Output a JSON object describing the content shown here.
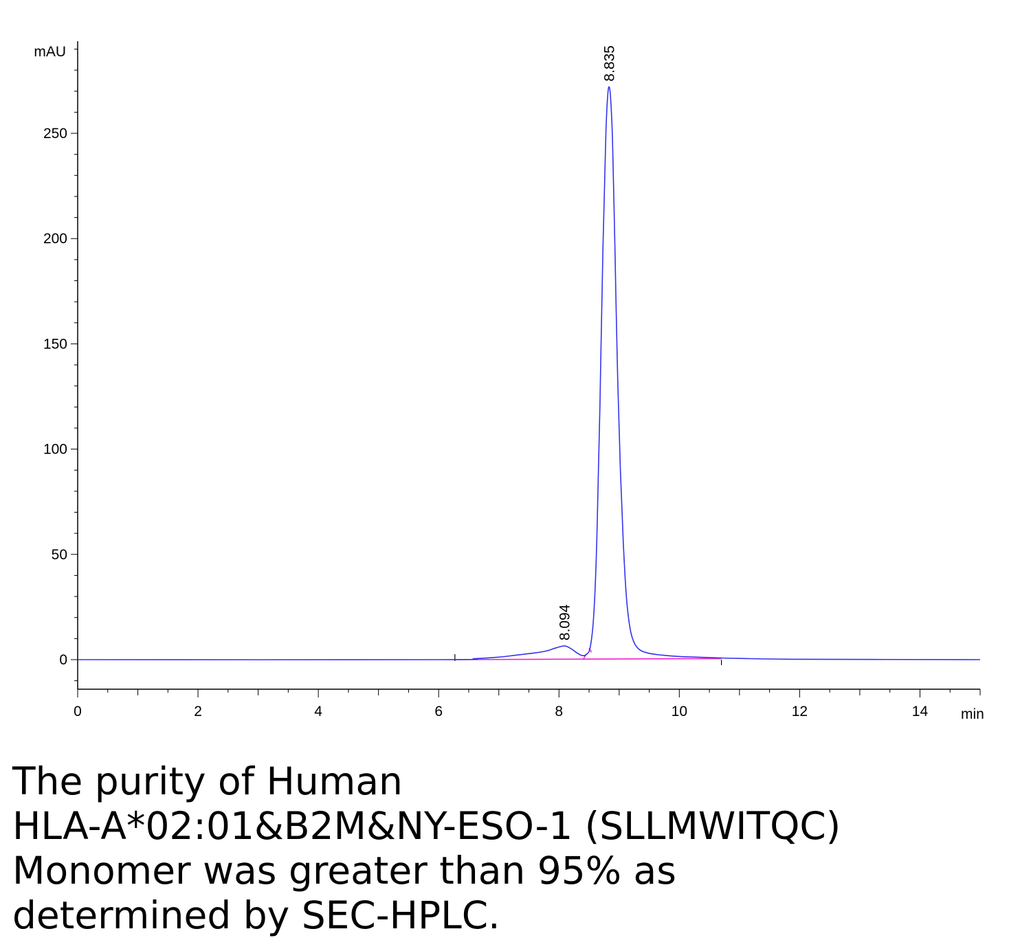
{
  "chart_data": {
    "type": "line",
    "ylabel": "mAU",
    "xlabel": "min",
    "xlim": [
      0,
      15
    ],
    "ylim": [
      -14,
      295
    ],
    "xticks": [
      0,
      2,
      4,
      6,
      8,
      10,
      12,
      14
    ],
    "yticks": [
      0,
      50,
      100,
      150,
      200,
      250
    ],
    "tick_labels_x": [
      "0",
      "2",
      "4",
      "6",
      "8",
      "10",
      "12",
      "14"
    ],
    "tick_labels_y": [
      "0",
      "50",
      "100",
      "150",
      "200",
      "250"
    ],
    "grid": false,
    "legend": "none",
    "series": [
      {
        "color": "#3333ee",
        "x": [
          0,
          6.0,
          6.6,
          7.0,
          7.3,
          7.6,
          7.8,
          7.95,
          8.094,
          8.2,
          8.3,
          8.38,
          8.45,
          8.52,
          8.58,
          8.63,
          8.68,
          8.73,
          8.78,
          8.81,
          8.835,
          8.86,
          8.89,
          8.93,
          8.97,
          9.02,
          9.07,
          9.12,
          9.18,
          9.25,
          9.35,
          9.5,
          9.7,
          10.0,
          10.5,
          11.0,
          12.0,
          15.0
        ],
        "y": [
          0,
          0,
          0.5,
          1.2,
          2.2,
          3.2,
          4.2,
          5.6,
          6.5,
          5.2,
          3.2,
          2.0,
          2.4,
          6.0,
          22,
          58,
          120,
          195,
          250,
          268,
          272,
          266,
          246,
          195,
          140,
          90,
          55,
          30,
          15,
          8.0,
          4.5,
          3.0,
          2.2,
          1.5,
          1.0,
          0.6,
          0.2,
          0
        ]
      }
    ],
    "baseline": {
      "color": "#ee22cc",
      "x": [
        6.27,
        10.7
      ],
      "y": [
        0,
        0.5
      ]
    },
    "peaks": [
      {
        "label": "8.094",
        "x": 8.094,
        "y": 6.5
      },
      {
        "label": "8.835",
        "x": 8.835,
        "y": 272
      }
    ]
  },
  "caption": {
    "line1": "The purity of Human",
    "line2": "HLA-A*02:01&B2M&NY-ESO-1 (SLLMWITQC)",
    "line3": "Monomer was greater than 95% as",
    "line4": "determined by SEC-HPLC."
  }
}
